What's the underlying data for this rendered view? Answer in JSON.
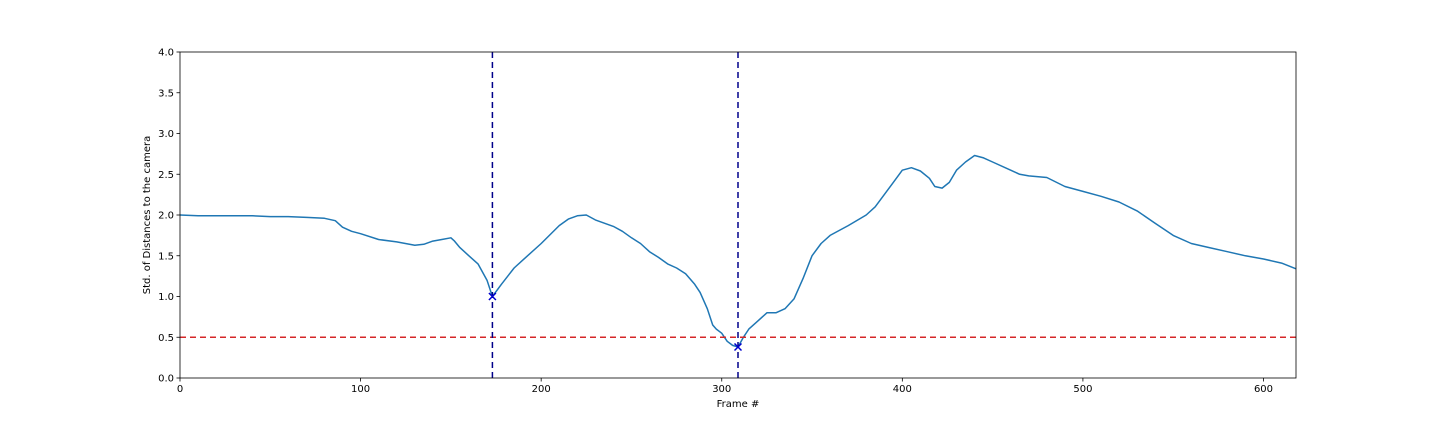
{
  "chart_data": {
    "type": "line",
    "title": "",
    "xlabel": "Frame #",
    "ylabel": "Std. of Distances to the camera",
    "xlim": [
      0,
      618
    ],
    "ylim": [
      0.0,
      4.0
    ],
    "x_ticks": [
      0,
      100,
      200,
      300,
      400,
      500,
      600
    ],
    "y_ticks": [
      0.0,
      0.5,
      1.0,
      1.5,
      2.0,
      2.5,
      3.0,
      3.5,
      4.0
    ],
    "grid": false,
    "legend": "none",
    "colors": {
      "series": "#1f77b4",
      "threshold": "#d62728",
      "marker_lines": "#00008b",
      "markers": "#0000cd"
    },
    "series": [
      {
        "x": [
          0,
          10,
          20,
          30,
          40,
          50,
          60,
          70,
          80,
          86,
          90,
          95,
          100,
          110,
          120,
          130,
          135,
          140,
          145,
          150,
          152,
          155,
          160,
          165,
          170,
          173,
          178,
          185,
          190,
          200,
          210,
          215,
          220,
          225,
          230,
          240,
          245,
          250,
          255,
          260,
          265,
          270,
          275,
          280,
          285,
          288,
          292,
          295,
          297,
          300,
          303,
          306,
          309,
          312,
          315,
          320,
          325,
          330,
          335,
          340,
          345,
          350,
          355,
          360,
          370,
          380,
          385,
          390,
          395,
          400,
          405,
          410,
          415,
          418,
          422,
          426,
          430,
          435,
          440,
          445,
          450,
          460,
          465,
          470,
          480,
          490,
          500,
          510,
          520,
          530,
          540,
          550,
          560,
          570,
          580,
          590,
          600,
          610,
          618
        ],
        "y": [
          2.0,
          1.99,
          1.99,
          1.99,
          1.99,
          1.98,
          1.98,
          1.97,
          1.96,
          1.93,
          1.85,
          1.8,
          1.77,
          1.7,
          1.67,
          1.63,
          1.64,
          1.68,
          1.7,
          1.72,
          1.68,
          1.6,
          1.5,
          1.4,
          1.2,
          1.0,
          1.15,
          1.35,
          1.45,
          1.65,
          1.87,
          1.95,
          1.99,
          2.0,
          1.94,
          1.86,
          1.8,
          1.72,
          1.65,
          1.55,
          1.48,
          1.4,
          1.35,
          1.28,
          1.15,
          1.05,
          0.85,
          0.65,
          0.6,
          0.55,
          0.45,
          0.4,
          0.38,
          0.5,
          0.6,
          0.7,
          0.8,
          0.8,
          0.85,
          0.97,
          1.22,
          1.5,
          1.65,
          1.75,
          1.87,
          2.0,
          2.1,
          2.25,
          2.4,
          2.55,
          2.58,
          2.54,
          2.45,
          2.35,
          2.33,
          2.4,
          2.55,
          2.65,
          2.73,
          2.7,
          2.65,
          2.55,
          2.5,
          2.48,
          2.46,
          2.35,
          2.29,
          2.23,
          2.16,
          2.05,
          1.9,
          1.75,
          1.65,
          1.6,
          1.55,
          1.5,
          1.46,
          1.41,
          1.34
        ]
      }
    ],
    "hline": {
      "y": 0.5
    },
    "vlines": [
      {
        "x": 173
      },
      {
        "x": 309
      }
    ],
    "markers": [
      {
        "x": 173,
        "y": 1.0
      },
      {
        "x": 309,
        "y": 0.38
      }
    ]
  }
}
